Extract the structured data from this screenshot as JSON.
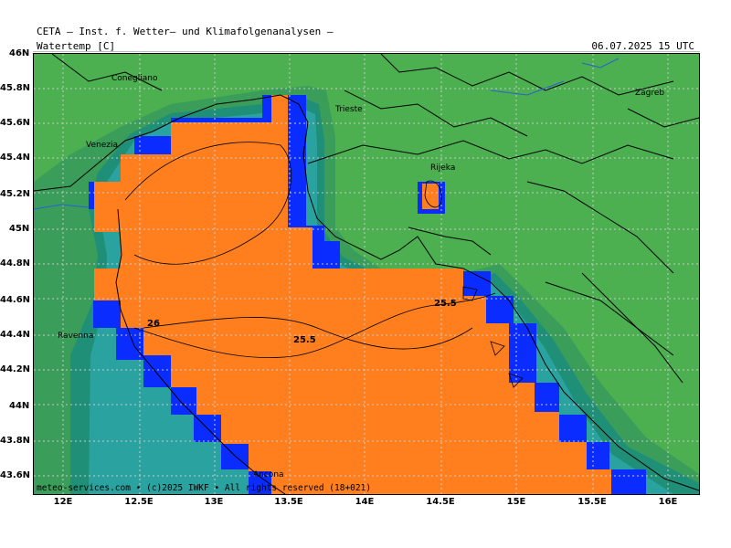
{
  "header": {
    "title": "CETA — Inst. f. Wetter— und Klimafolgenanalysen —",
    "parameter": "Watertemp [C]",
    "valid_time": "06.07.2025 15 UTC"
  },
  "axes": {
    "lat_labels": [
      "46N",
      "45.8N",
      "45.6N",
      "45.4N",
      "45.2N",
      "45N",
      "44.8N",
      "44.6N",
      "44.4N",
      "44.2N",
      "44N",
      "43.8N",
      "43.6N"
    ],
    "lon_labels": [
      "12E",
      "12.5E",
      "13E",
      "13.5E",
      "14E",
      "14.5E",
      "15E",
      "15.5E",
      "16E"
    ]
  },
  "cities": {
    "conegliano": "Conegliano",
    "venezia": "Venezia",
    "trieste": "Trieste",
    "rijeka": "Rijeka",
    "zagreb": "Zagreb",
    "ravenna": "Ravenna",
    "ancona": "Ancona"
  },
  "contours": {
    "c26": "26",
    "c255a": "25.5",
    "c255b": "25.5"
  },
  "footer": {
    "credit": "meteo-services.com • (c)2025 IWKF • All rights reserved (18+021)"
  },
  "colors": {
    "land": "#4caf50",
    "sea_warm": "#ff7f1f",
    "sea_cool": "#0b2cff",
    "coast_teal": "#1a8c7a"
  }
}
